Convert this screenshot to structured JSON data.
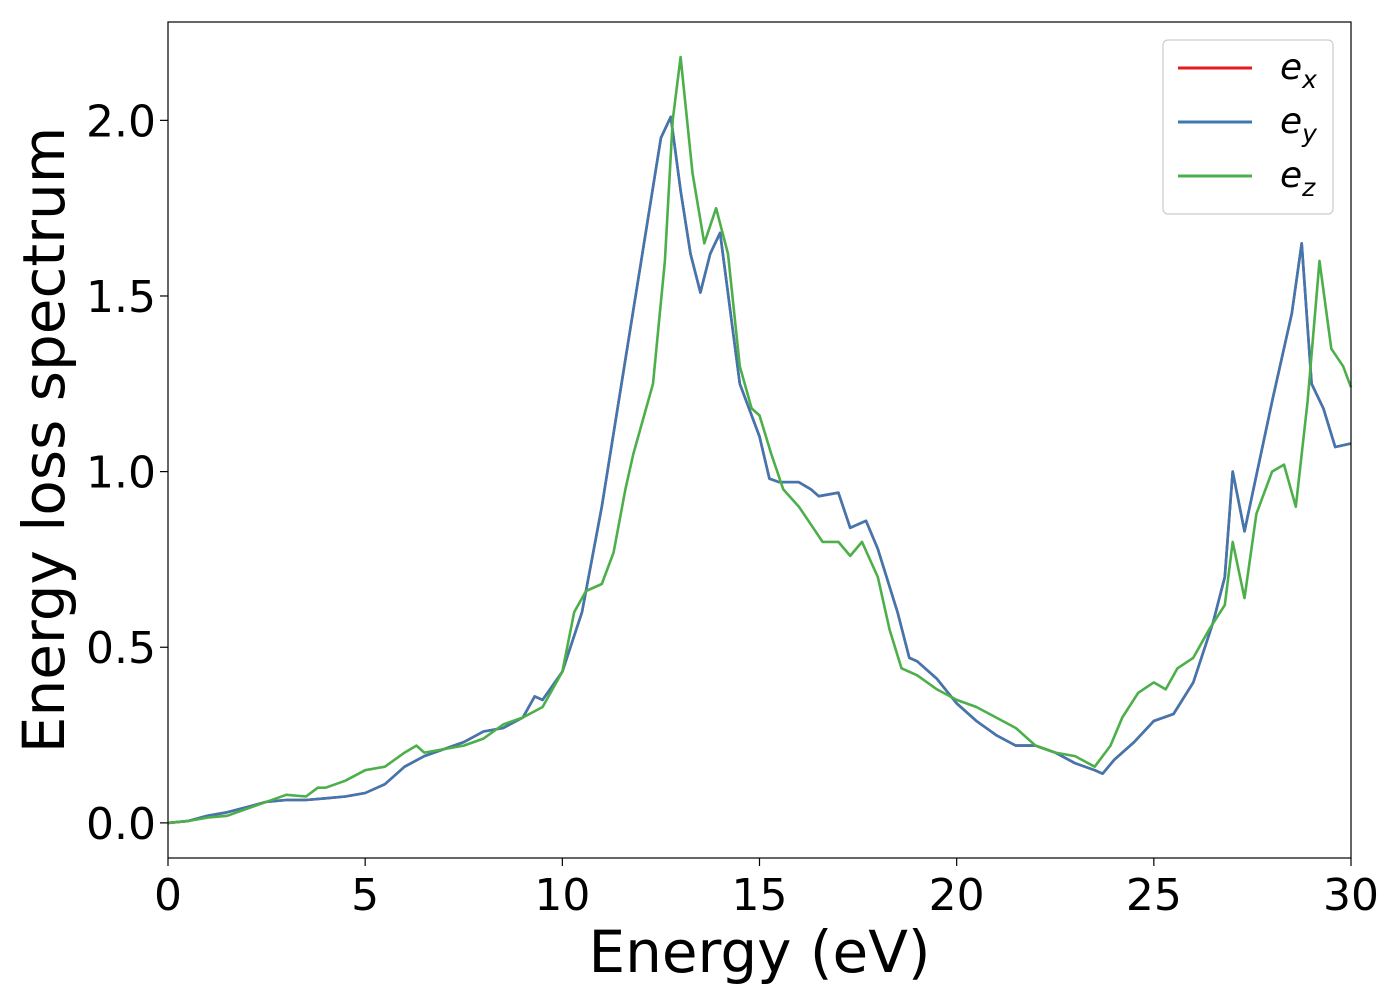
{
  "chart_data": {
    "type": "line",
    "xlabel": "Energy (eV)",
    "ylabel": "Energy loss spectrum",
    "xlim": [
      0,
      30
    ],
    "ylim": [
      -0.1,
      2.28
    ],
    "xticks": [
      0,
      5,
      10,
      15,
      20,
      25,
      30
    ],
    "xtick_labels": [
      "0",
      "5",
      "10",
      "15",
      "20",
      "25",
      "30"
    ],
    "yticks": [
      0.0,
      0.5,
      1.0,
      1.5,
      2.0
    ],
    "ytick_labels": [
      "0.0",
      "0.5",
      "1.0",
      "1.5",
      "2.0"
    ],
    "grid": false,
    "legend_position": "top-right",
    "series": [
      {
        "name": "e",
        "subscript": "x",
        "color": "#e41a1c",
        "x": [
          0,
          0.5,
          1,
          1.5,
          2,
          2.5,
          3,
          3.5,
          4,
          4.5,
          5,
          5.5,
          6,
          6.5,
          7,
          7.5,
          8,
          8.5,
          9,
          9.3,
          9.5,
          10,
          10.5,
          11,
          11.5,
          12,
          12.5,
          12.75,
          13,
          13.25,
          13.5,
          13.75,
          14,
          14.5,
          15,
          15.25,
          15.5,
          16,
          16.3,
          16.5,
          17,
          17.3,
          17.7,
          18,
          18.5,
          18.8,
          19,
          19.5,
          20,
          20.5,
          21,
          21.5,
          22,
          22.5,
          23,
          23.5,
          23.7,
          24,
          24.5,
          25,
          25.5,
          26,
          26.5,
          26.8,
          27,
          27.3,
          28,
          28.5,
          28.75,
          29,
          29.3,
          29.6,
          30
        ],
        "y": [
          0.0,
          0.005,
          0.02,
          0.03,
          0.045,
          0.06,
          0.065,
          0.065,
          0.07,
          0.075,
          0.085,
          0.11,
          0.16,
          0.19,
          0.21,
          0.23,
          0.26,
          0.27,
          0.3,
          0.36,
          0.35,
          0.43,
          0.6,
          0.9,
          1.25,
          1.6,
          1.95,
          2.01,
          1.8,
          1.62,
          1.51,
          1.62,
          1.68,
          1.25,
          1.1,
          0.98,
          0.97,
          0.97,
          0.95,
          0.93,
          0.94,
          0.84,
          0.86,
          0.78,
          0.6,
          0.47,
          0.46,
          0.41,
          0.34,
          0.29,
          0.25,
          0.22,
          0.22,
          0.2,
          0.17,
          0.15,
          0.14,
          0.18,
          0.23,
          0.29,
          0.31,
          0.4,
          0.57,
          0.7,
          1.0,
          0.83,
          1.2,
          1.45,
          1.65,
          1.25,
          1.18,
          1.07,
          1.08
        ]
      },
      {
        "name": "e",
        "subscript": "y",
        "color": "#3f78b0",
        "x": [
          0,
          0.5,
          1,
          1.5,
          2,
          2.5,
          3,
          3.5,
          4,
          4.5,
          5,
          5.5,
          6,
          6.5,
          7,
          7.5,
          8,
          8.5,
          9,
          9.3,
          9.5,
          10,
          10.5,
          11,
          11.5,
          12,
          12.5,
          12.75,
          13,
          13.25,
          13.5,
          13.75,
          14,
          14.5,
          15,
          15.25,
          15.5,
          16,
          16.3,
          16.5,
          17,
          17.3,
          17.7,
          18,
          18.5,
          18.8,
          19,
          19.5,
          20,
          20.5,
          21,
          21.5,
          22,
          22.5,
          23,
          23.5,
          23.7,
          24,
          24.5,
          25,
          25.5,
          26,
          26.5,
          26.8,
          27,
          27.3,
          28,
          28.5,
          28.75,
          29,
          29.3,
          29.6,
          30
        ],
        "y": [
          0.0,
          0.005,
          0.02,
          0.03,
          0.045,
          0.06,
          0.065,
          0.065,
          0.07,
          0.075,
          0.085,
          0.11,
          0.16,
          0.19,
          0.21,
          0.23,
          0.26,
          0.27,
          0.3,
          0.36,
          0.35,
          0.43,
          0.6,
          0.9,
          1.25,
          1.6,
          1.95,
          2.01,
          1.8,
          1.62,
          1.51,
          1.62,
          1.68,
          1.25,
          1.1,
          0.98,
          0.97,
          0.97,
          0.95,
          0.93,
          0.94,
          0.84,
          0.86,
          0.78,
          0.6,
          0.47,
          0.46,
          0.41,
          0.34,
          0.29,
          0.25,
          0.22,
          0.22,
          0.2,
          0.17,
          0.15,
          0.14,
          0.18,
          0.23,
          0.29,
          0.31,
          0.4,
          0.57,
          0.7,
          1.0,
          0.83,
          1.2,
          1.45,
          1.65,
          1.25,
          1.18,
          1.07,
          1.08
        ]
      },
      {
        "name": "e",
        "subscript": "z",
        "color": "#4daf4a",
        "x": [
          0,
          0.5,
          1,
          1.5,
          2,
          2.5,
          3,
          3.5,
          3.8,
          4,
          4.5,
          5,
          5.5,
          6,
          6.3,
          6.5,
          7,
          7.5,
          8,
          8.5,
          9,
          9.5,
          10,
          10.3,
          10.6,
          11,
          11.3,
          11.6,
          11.8,
          12,
          12.3,
          12.6,
          12.8,
          13,
          13.3,
          13.6,
          13.9,
          14.2,
          14.5,
          14.8,
          15,
          15.3,
          15.6,
          16,
          16.3,
          16.6,
          17,
          17.3,
          17.6,
          18,
          18.3,
          18.6,
          19,
          19.5,
          20,
          20.5,
          21,
          21.5,
          22,
          22.5,
          23,
          23.5,
          23.9,
          24.2,
          24.6,
          25,
          25.3,
          25.6,
          26,
          26.4,
          26.8,
          27,
          27.3,
          27.6,
          28,
          28.3,
          28.6,
          28.9,
          29.2,
          29.5,
          29.8,
          30
        ],
        "y": [
          0.0,
          0.005,
          0.015,
          0.02,
          0.04,
          0.06,
          0.08,
          0.075,
          0.1,
          0.1,
          0.12,
          0.15,
          0.16,
          0.2,
          0.22,
          0.2,
          0.21,
          0.22,
          0.24,
          0.28,
          0.3,
          0.33,
          0.43,
          0.6,
          0.66,
          0.68,
          0.77,
          0.95,
          1.05,
          1.13,
          1.25,
          1.6,
          2.0,
          2.18,
          1.85,
          1.65,
          1.75,
          1.62,
          1.3,
          1.18,
          1.16,
          1.05,
          0.95,
          0.9,
          0.85,
          0.8,
          0.8,
          0.76,
          0.8,
          0.7,
          0.55,
          0.44,
          0.42,
          0.38,
          0.35,
          0.33,
          0.3,
          0.27,
          0.22,
          0.2,
          0.19,
          0.16,
          0.22,
          0.3,
          0.37,
          0.4,
          0.38,
          0.44,
          0.47,
          0.55,
          0.62,
          0.8,
          0.64,
          0.88,
          1.0,
          1.02,
          0.9,
          1.2,
          1.6,
          1.35,
          1.3,
          1.24
        ]
      }
    ]
  }
}
